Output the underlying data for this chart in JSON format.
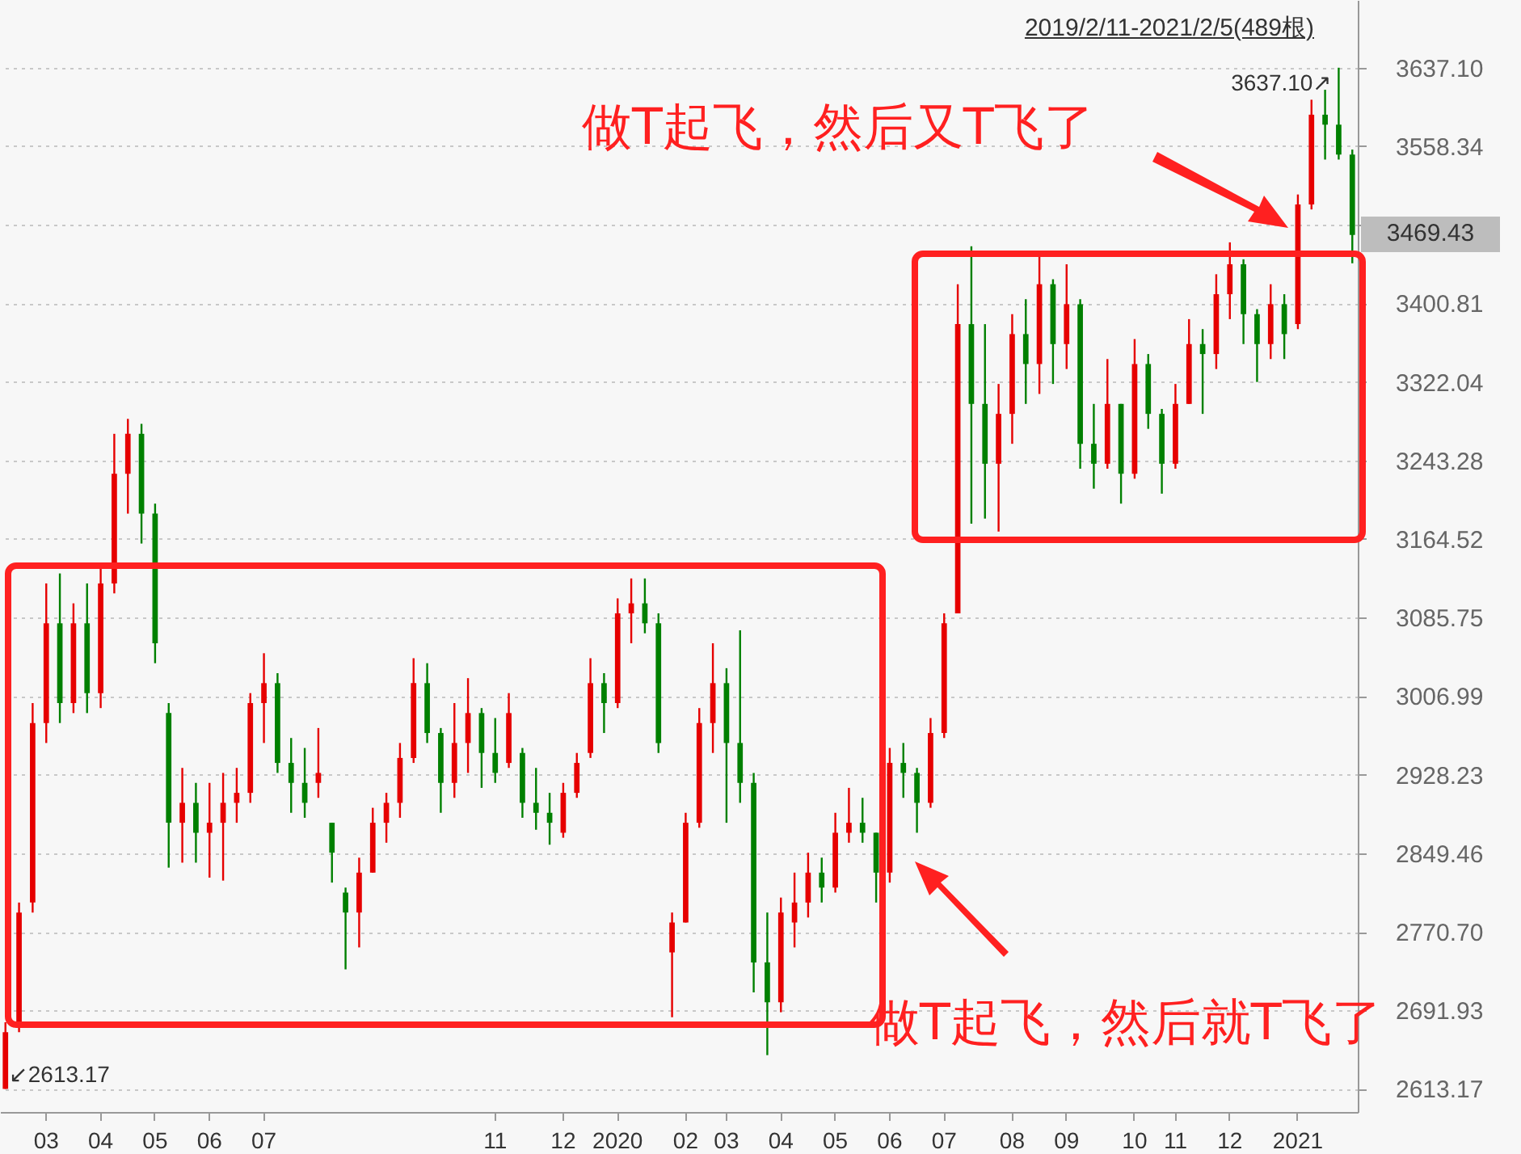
{
  "chart_data": {
    "type": "candlestick",
    "subtitle": "2019/2/11-2021/2/5(489根)",
    "categories": [
      null,
      null,
      null,
      "03",
      null,
      null,
      null,
      "04",
      null,
      null,
      null,
      "05",
      null,
      null,
      null,
      "06",
      null,
      null,
      null,
      "07",
      null,
      null,
      null,
      null,
      null,
      null,
      null,
      null,
      null,
      null,
      null,
      null,
      null,
      null,
      null,
      null,
      "11",
      null,
      null,
      null,
      null,
      "12",
      null,
      null,
      null,
      "2020",
      null,
      null,
      null,
      null,
      "02",
      null,
      null,
      "03",
      null,
      null,
      null,
      "04",
      null,
      null,
      null,
      "05",
      null,
      null,
      null,
      "06",
      null,
      null,
      null,
      "07",
      null,
      null,
      null,
      null,
      "08",
      null,
      null,
      null,
      "09",
      null,
      null,
      null,
      null,
      "10",
      null,
      null,
      "11",
      null,
      null,
      null,
      "12",
      null,
      null,
      null,
      null,
      "2021",
      null,
      null,
      null,
      null
    ],
    "ohlc": [
      [
        2613.17,
        2680,
        2613.17,
        2670
      ],
      [
        2680,
        2800,
        2670,
        2790
      ],
      [
        2800,
        3000,
        2790,
        2980
      ],
      [
        2980,
        3120,
        2960,
        3080
      ],
      [
        3080,
        3130,
        2980,
        3000
      ],
      [
        3000,
        3100,
        2990,
        3080
      ],
      [
        3080,
        3120,
        2990,
        3010
      ],
      [
        3010,
        3140,
        2995,
        3120
      ],
      [
        3120,
        3270,
        3110,
        3230
      ],
      [
        3230,
        3285,
        3190,
        3270
      ],
      [
        3270,
        3280,
        3160,
        3190
      ],
      [
        3190,
        3200,
        3040,
        3060
      ],
      [
        2990,
        3000,
        2835,
        2880
      ],
      [
        2880,
        2935,
        2840,
        2900
      ],
      [
        2900,
        2920,
        2840,
        2870
      ],
      [
        2870,
        2920,
        2825,
        2880
      ],
      [
        2880,
        2930,
        2822,
        2900
      ],
      [
        2900,
        2935,
        2880,
        2910
      ],
      [
        2910,
        3010,
        2900,
        3000
      ],
      [
        3000,
        3050,
        2960,
        3020
      ],
      [
        3020,
        3030,
        2930,
        2940
      ],
      [
        2940,
        2965,
        2890,
        2920
      ],
      [
        2920,
        2955,
        2885,
        2900
      ],
      [
        2920,
        2975,
        2905,
        2930
      ],
      [
        2880,
        2880,
        2820,
        2850
      ],
      [
        2810,
        2815,
        2733,
        2790
      ],
      [
        2790,
        2845,
        2755,
        2830
      ],
      [
        2830,
        2895,
        2830,
        2880
      ],
      [
        2880,
        2910,
        2860,
        2900
      ],
      [
        2900,
        2960,
        2885,
        2945
      ],
      [
        2945,
        3045,
        2940,
        3020
      ],
      [
        3020,
        3040,
        2960,
        2970
      ],
      [
        2970,
        2975,
        2890,
        2920
      ],
      [
        2920,
        3000,
        2905,
        2960
      ],
      [
        2960,
        3025,
        2930,
        2990
      ],
      [
        2990,
        2995,
        2915,
        2950
      ],
      [
        2950,
        2985,
        2920,
        2930
      ],
      [
        2940,
        3010,
        2935,
        2990
      ],
      [
        2950,
        2955,
        2885,
        2900
      ],
      [
        2900,
        2935,
        2873,
        2890
      ],
      [
        2890,
        2910,
        2858,
        2880
      ],
      [
        2870,
        2920,
        2865,
        2910
      ],
      [
        2910,
        2950,
        2905,
        2940
      ],
      [
        2950,
        3045,
        2945,
        3020
      ],
      [
        3020,
        3030,
        2970,
        3000
      ],
      [
        3000,
        3105,
        2995,
        3090
      ],
      [
        3090,
        3125,
        3060,
        3100
      ],
      [
        3100,
        3125,
        3070,
        3080
      ],
      [
        3080,
        3090,
        2950,
        2960
      ],
      [
        2750,
        2790,
        2685,
        2780
      ],
      [
        2780,
        2890,
        2780,
        2880
      ],
      [
        2880,
        2995,
        2875,
        2980
      ],
      [
        2980,
        3060,
        2950,
        3020
      ],
      [
        3020,
        3035,
        2880,
        2960
      ],
      [
        2960,
        3073,
        2900,
        2920
      ],
      [
        2920,
        2930,
        2710,
        2740
      ],
      [
        2740,
        2790,
        2647,
        2700
      ],
      [
        2700,
        2805,
        2690,
        2790
      ],
      [
        2780,
        2830,
        2755,
        2800
      ],
      [
        2800,
        2850,
        2785,
        2830
      ],
      [
        2830,
        2845,
        2800,
        2815
      ],
      [
        2815,
        2890,
        2810,
        2870
      ],
      [
        2870,
        2915,
        2860,
        2880
      ],
      [
        2880,
        2905,
        2860,
        2870
      ],
      [
        2870,
        2870,
        2800,
        2830
      ],
      [
        2830,
        2955,
        2820,
        2940
      ],
      [
        2940,
        2960,
        2905,
        2930
      ],
      [
        2930,
        2935,
        2870,
        2900
      ],
      [
        2900,
        2985,
        2895,
        2970
      ],
      [
        2970,
        3090,
        2965,
        3080
      ],
      [
        3090,
        3420,
        3090,
        3380
      ],
      [
        3380,
        3458,
        3180,
        3300
      ],
      [
        3300,
        3380,
        3185,
        3240
      ],
      [
        3240,
        3320,
        3172,
        3290
      ],
      [
        3290,
        3390,
        3260,
        3370
      ],
      [
        3370,
        3405,
        3300,
        3340
      ],
      [
        3340,
        3452,
        3310,
        3420
      ],
      [
        3420,
        3425,
        3320,
        3360
      ],
      [
        3360,
        3440,
        3335,
        3400
      ],
      [
        3400,
        3405,
        3235,
        3260
      ],
      [
        3260,
        3300,
        3215,
        3240
      ],
      [
        3240,
        3345,
        3235,
        3300
      ],
      [
        3300,
        3300,
        3200,
        3230
      ],
      [
        3230,
        3365,
        3225,
        3340
      ],
      [
        3340,
        3350,
        3275,
        3290
      ],
      [
        3290,
        3295,
        3210,
        3240
      ],
      [
        3240,
        3320,
        3235,
        3300
      ],
      [
        3300,
        3385,
        3300,
        3360
      ],
      [
        3360,
        3375,
        3290,
        3350
      ],
      [
        3350,
        3430,
        3335,
        3410
      ],
      [
        3410,
        3462,
        3385,
        3440
      ],
      [
        3440,
        3445,
        3360,
        3390
      ],
      [
        3390,
        3395,
        3322,
        3360
      ],
      [
        3360,
        3420,
        3345,
        3400
      ],
      [
        3400,
        3410,
        3345,
        3370
      ],
      [
        3380,
        3510,
        3375,
        3500
      ],
      [
        3500,
        3605,
        3495,
        3590
      ],
      [
        3590,
        3615,
        3545,
        3580
      ],
      [
        3580,
        3637.1,
        3545,
        3550
      ],
      [
        3550,
        3555,
        3441,
        3469.43
      ]
    ],
    "colors": [
      "#e60000",
      "#e60000",
      "#e60000",
      "#e60000",
      "#008000",
      "#e60000",
      "#008000",
      "#e60000",
      "#e60000",
      "#e60000",
      "#008000",
      "#008000",
      "#008000",
      "#e60000",
      "#008000",
      "#e60000",
      "#e60000",
      "#e60000",
      "#e60000",
      "#e60000",
      "#008000",
      "#008000",
      "#008000",
      "#e60000",
      "#008000",
      "#008000",
      "#e60000",
      "#e60000",
      "#e60000",
      "#e60000",
      "#e60000",
      "#008000",
      "#008000",
      "#e60000",
      "#e60000",
      "#008000",
      "#008000",
      "#e60000",
      "#008000",
      "#008000",
      "#008000",
      "#e60000",
      "#e60000",
      "#e60000",
      "#008000",
      "#e60000",
      "#e60000",
      "#008000",
      "#008000",
      "#e60000",
      "#e60000",
      "#e60000",
      "#e60000",
      "#008000",
      "#008000",
      "#008000",
      "#008000",
      "#e60000",
      "#e60000",
      "#e60000",
      "#008000",
      "#e60000",
      "#e60000",
      "#008000",
      "#008000",
      "#e60000",
      "#008000",
      "#008000",
      "#e60000",
      "#e60000",
      "#e60000",
      "#008000",
      "#008000",
      "#e60000",
      "#e60000",
      "#008000",
      "#e60000",
      "#008000",
      "#e60000",
      "#008000",
      "#008000",
      "#e60000",
      "#008000",
      "#e60000",
      "#008000",
      "#008000",
      "#e60000",
      "#e60000",
      "#008000",
      "#e60000",
      "#e60000",
      "#008000",
      "#008000",
      "#e60000",
      "#008000",
      "#e60000",
      "#e60000",
      "#008000",
      "#008000",
      "#008000"
    ],
    "ylim": [
      2590,
      3705
    ],
    "yticks": [
      2613.17,
      2691.93,
      {
        "value": 2770.7,
        "label": "2770.70"
      },
      2849.46,
      2928.23,
      3006.99,
      3085.75,
      3164.52,
      3243.28,
      3322.04,
      3400.81,
      {
        "value": 3479.57,
        "label": null
      },
      3558.34,
      {
        "value": 3637.1,
        "label": "3637.10"
      }
    ],
    "grid": "y",
    "annotations": [
      "3637.10↗",
      "↙2613.17",
      "3469.43",
      "做T起飞，然后又T飞了",
      "做T起飞，然后就T飞了"
    ]
  }
}
